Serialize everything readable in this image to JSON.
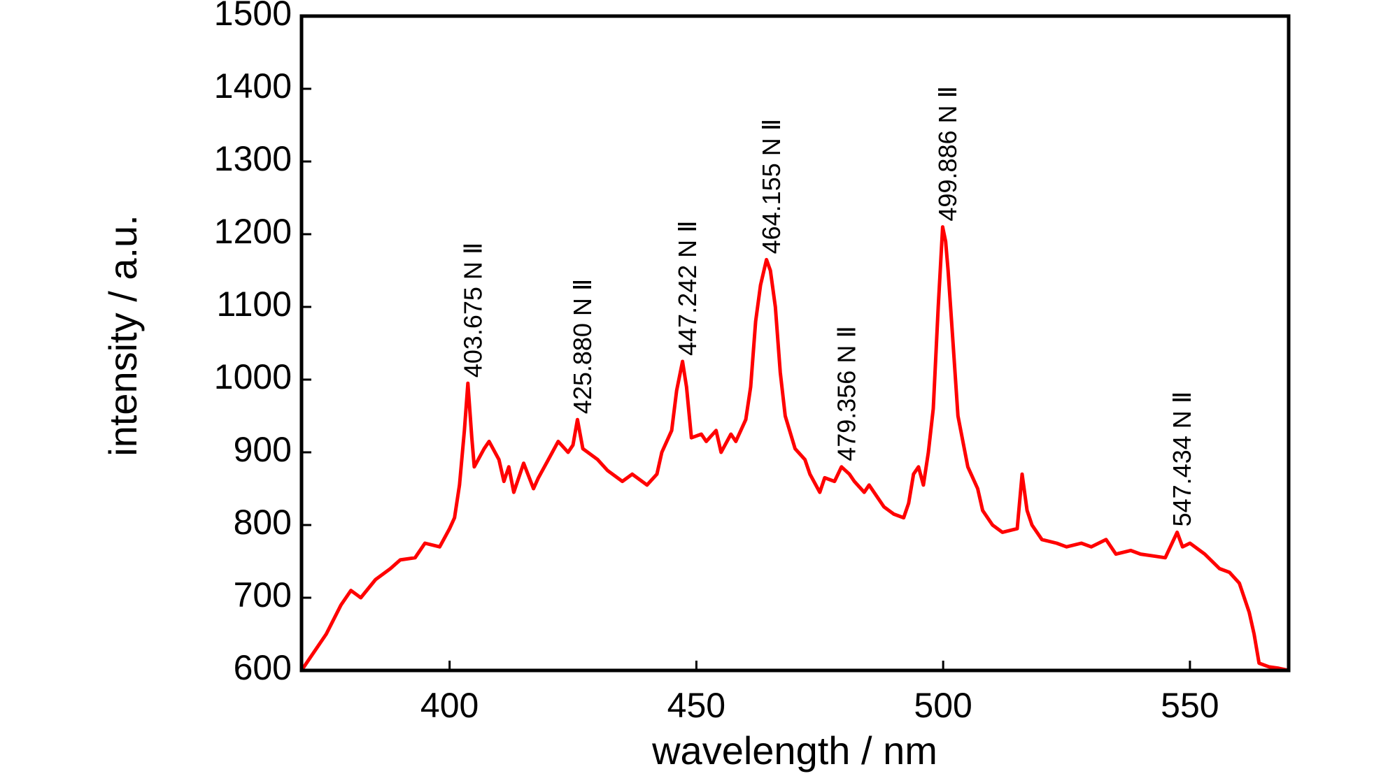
{
  "chart_data": {
    "type": "line",
    "x_label": "wavelength / nm",
    "y_label": "intensity / a.u.",
    "x": [
      370,
      372,
      375,
      378,
      380,
      382,
      385,
      388,
      390,
      393,
      395,
      398,
      400,
      401,
      402,
      403,
      403.7,
      404.5,
      405,
      407,
      408,
      410,
      411,
      412,
      413,
      415,
      417,
      418,
      420,
      422,
      424,
      425,
      425.9,
      427,
      428,
      430,
      432,
      435,
      437,
      440,
      442,
      443,
      445,
      446,
      447.2,
      448,
      449,
      451,
      452,
      454,
      455,
      457,
      458,
      460,
      461,
      462,
      463,
      464.2,
      465,
      466,
      467,
      468,
      470,
      472,
      473,
      475,
      476,
      478,
      479.4,
      481,
      482,
      484,
      485,
      488,
      490,
      492,
      493,
      494,
      495,
      496,
      497,
      498,
      499,
      499.9,
      500.5,
      501,
      502,
      503,
      505,
      507,
      508,
      510,
      512,
      515,
      516,
      517,
      518,
      520,
      523,
      525,
      528,
      530,
      533,
      535,
      538,
      540,
      543,
      545,
      547.4,
      548.5,
      550,
      552,
      553,
      556,
      558,
      560,
      562,
      563,
      564,
      566,
      568,
      570
    ],
    "series": [
      {
        "name": "spectrum",
        "color": "#ff0000",
        "values": [
          600,
          620,
          650,
          690,
          710,
          700,
          725,
          740,
          752,
          755,
          775,
          770,
          795,
          810,
          855,
          930,
          995,
          920,
          880,
          905,
          915,
          890,
          860,
          880,
          845,
          885,
          850,
          865,
          890,
          915,
          900,
          910,
          945,
          905,
          900,
          890,
          875,
          860,
          870,
          855,
          870,
          900,
          930,
          985,
          1025,
          990,
          920,
          925,
          915,
          930,
          900,
          925,
          915,
          945,
          990,
          1080,
          1130,
          1165,
          1150,
          1100,
          1010,
          950,
          905,
          890,
          870,
          845,
          865,
          860,
          880,
          870,
          860,
          845,
          855,
          825,
          815,
          810,
          830,
          870,
          880,
          855,
          900,
          960,
          1100,
          1210,
          1190,
          1150,
          1050,
          950,
          880,
          850,
          820,
          800,
          790,
          795,
          870,
          820,
          800,
          780,
          775,
          770,
          775,
          770,
          780,
          760,
          765,
          760,
          757,
          755,
          790,
          770,
          775,
          765,
          760,
          740,
          735,
          720,
          680,
          650,
          610,
          605,
          603,
          600
        ]
      }
    ],
    "annotations": [
      {
        "text": "403.675 N Ⅱ",
        "x": 403.7
      },
      {
        "text": "425.880 N Ⅱ",
        "x": 425.9
      },
      {
        "text": "447.242 N Ⅱ",
        "x": 447.2
      },
      {
        "text": "464.155 N Ⅱ",
        "x": 464.2
      },
      {
        "text": "479.356 N Ⅱ",
        "x": 479.4
      },
      {
        "text": "499.886 N Ⅱ",
        "x": 499.9
      },
      {
        "text": "547.434 N Ⅱ",
        "x": 547.4
      }
    ],
    "xlim": [
      370,
      570
    ],
    "xticks": [
      400,
      450,
      500,
      550
    ],
    "ylim": [
      600,
      1500
    ],
    "yticks": [
      600,
      700,
      800,
      900,
      1000,
      1100,
      1200,
      1300,
      1400,
      1500
    ]
  }
}
